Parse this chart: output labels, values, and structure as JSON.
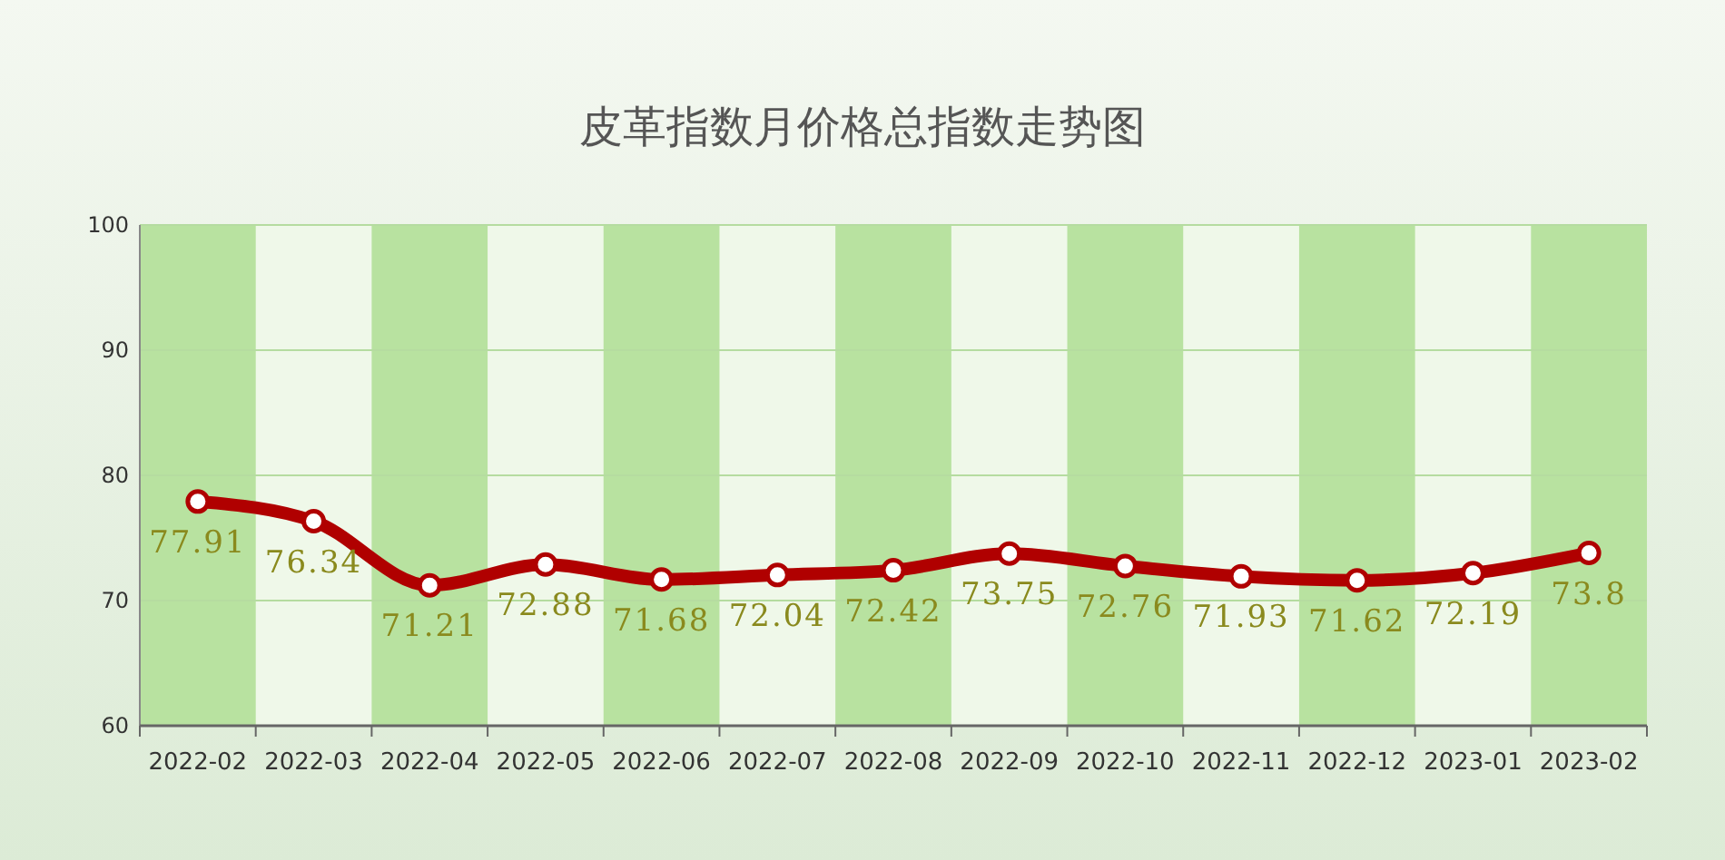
{
  "chart_data": {
    "type": "line",
    "title": "皮革指数月价格总指数走势图",
    "categories": [
      "2022-02",
      "2022-03",
      "2022-04",
      "2022-05",
      "2022-06",
      "2022-07",
      "2022-08",
      "2022-09",
      "2022-10",
      "2022-11",
      "2022-12",
      "2023-01",
      "2023-02"
    ],
    "series": [
      {
        "color": "#b00000",
        "values": [
          77.91,
          76.34,
          71.21,
          72.88,
          71.68,
          72.04,
          72.42,
          73.75,
          72.76,
          71.93,
          71.62,
          72.19,
          73.8
        ]
      }
    ],
    "bands": [
      {
        "axis": "x",
        "from": "2022-02",
        "to": "2022-02",
        "color": "#b8e2a0"
      },
      {
        "axis": "x",
        "from": "2022-04",
        "to": "2022-04",
        "color": "#b8e2a0"
      },
      {
        "axis": "x",
        "from": "2022-06",
        "to": "2022-06",
        "color": "#b8e2a0"
      },
      {
        "axis": "x",
        "from": "2022-08",
        "to": "2022-08",
        "color": "#b8e2a0"
      },
      {
        "axis": "x",
        "from": "2022-10",
        "to": "2022-10",
        "color": "#b8e2a0"
      },
      {
        "axis": "x",
        "from": "2022-12",
        "to": "2022-12",
        "color": "#b8e2a0"
      },
      {
        "axis": "x",
        "from": "2023-02",
        "to": "2023-02",
        "color": "#b8e2a0"
      }
    ],
    "ylim": [
      60,
      100
    ],
    "yticks": [
      60,
      70,
      80,
      90,
      100
    ],
    "grid": "y",
    "marker": "circle",
    "line_style": "solid",
    "data_labels": true
  }
}
